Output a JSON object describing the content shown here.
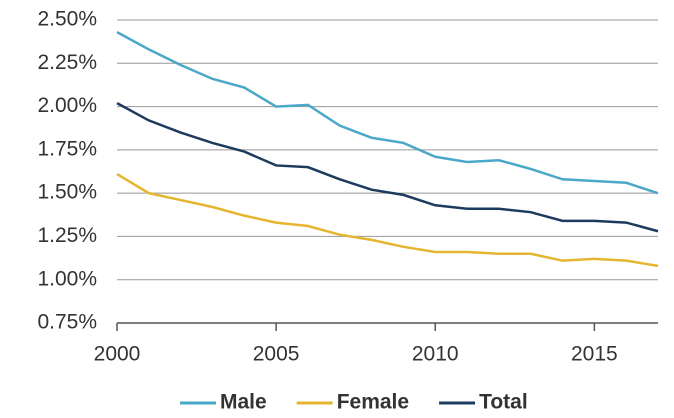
{
  "chart_data": {
    "type": "line",
    "x": [
      2000,
      2001,
      2002,
      2003,
      2004,
      2005,
      2006,
      2007,
      2008,
      2009,
      2010,
      2011,
      2012,
      2013,
      2014,
      2015,
      2016,
      2017
    ],
    "series": [
      {
        "name": "Male",
        "color": "#4aa8c8",
        "values": [
          2.43,
          2.33,
          2.24,
          2.16,
          2.11,
          2.0,
          2.01,
          1.89,
          1.82,
          1.79,
          1.71,
          1.68,
          1.69,
          1.64,
          1.58,
          1.57,
          1.56,
          1.5
        ]
      },
      {
        "name": "Female",
        "color": "#e6b530",
        "values": [
          1.61,
          1.5,
          1.46,
          1.42,
          1.37,
          1.33,
          1.31,
          1.26,
          1.23,
          1.19,
          1.16,
          1.16,
          1.15,
          1.15,
          1.11,
          1.12,
          1.11,
          1.08
        ]
      },
      {
        "name": "Total",
        "color": "#1d3b5e",
        "values": [
          2.02,
          1.92,
          1.85,
          1.79,
          1.74,
          1.66,
          1.65,
          1.58,
          1.52,
          1.49,
          1.43,
          1.41,
          1.41,
          1.39,
          1.34,
          1.34,
          1.33,
          1.28
        ]
      }
    ],
    "xlim": [
      2000,
      2017
    ],
    "xticks": [
      2000,
      2005,
      2010,
      2015
    ],
    "ylim": [
      0.75,
      2.5
    ],
    "yticks": [
      {
        "value": 0.75,
        "label": "0.75%"
      },
      {
        "value": 1.0,
        "label": "1.00%"
      },
      {
        "value": 1.25,
        "label": "1.25%"
      },
      {
        "value": 1.5,
        "label": "1.50%"
      },
      {
        "value": 1.75,
        "label": "1.75%"
      },
      {
        "value": 2.0,
        "label": "2.00%"
      },
      {
        "value": 2.25,
        "label": "2.25%"
      },
      {
        "value": 2.5,
        "label": "2.50%"
      }
    ],
    "grid": true,
    "legend": "bottom"
  }
}
